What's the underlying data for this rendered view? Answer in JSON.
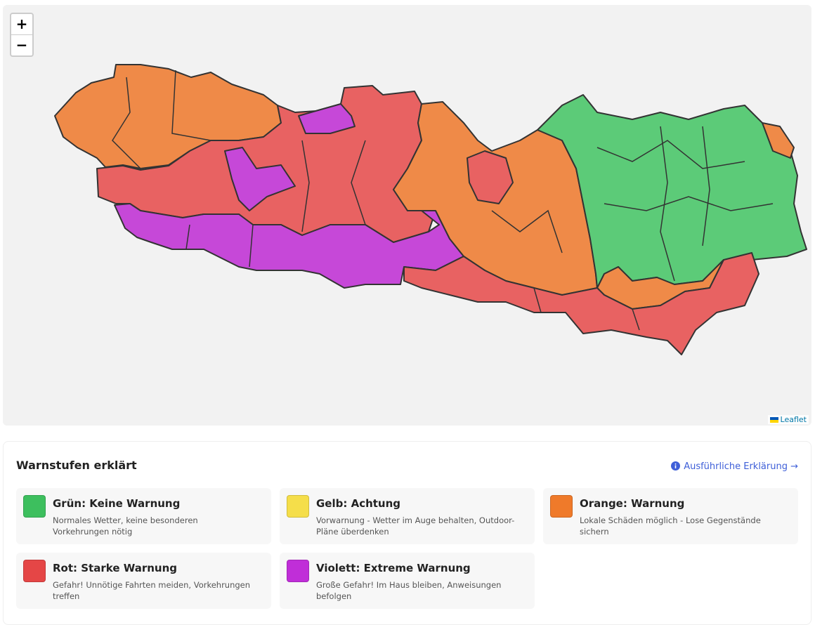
{
  "map": {
    "zoom_in": "+",
    "zoom_out": "−",
    "attribution": "Leaflet"
  },
  "legend": {
    "title": "Warnstufen erklärt",
    "link": "Ausführliche Erklärung →",
    "levels": [
      {
        "title": "Grün: Keine Warnung",
        "description": "Normales Wetter, keine besonderen Vorkehrungen nötig",
        "color": "#3dbf5e"
      },
      {
        "title": "Gelb: Achtung",
        "description": "Vorwarnung - Wetter im Auge behalten, Outdoor-Pläne überdenken",
        "color": "#f5de4a"
      },
      {
        "title": "Orange: Warnung",
        "description": "Lokale Schäden möglich - Lose Gegenstände sichern",
        "color": "#ef7a2a"
      },
      {
        "title": "Rot: Starke Warnung",
        "description": "Gefahr! Unnötige Fahrten meiden, Vorkehrungen treffen",
        "color": "#e54646"
      },
      {
        "title": "Violett: Extreme Warnung",
        "description": "Große Gefahr! Im Haus bleiben, Anweisungen befolgen",
        "color": "#c02ed8"
      }
    ]
  }
}
